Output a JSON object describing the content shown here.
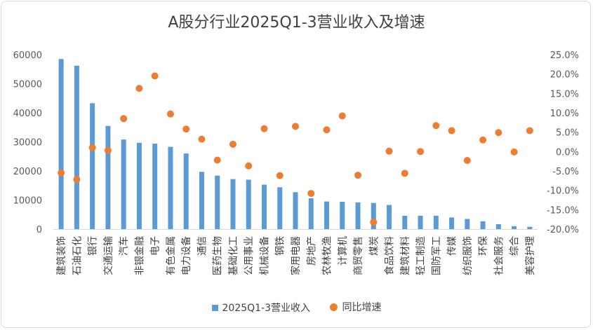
{
  "chart_data": {
    "type": "bar",
    "title": "A股分行业2025Q1-3营业收入及增速",
    "categories": [
      "建筑装饰",
      "石油石化",
      "银行",
      "交通运输",
      "汽车",
      "非银金融",
      "电子",
      "有色金属",
      "电力设备",
      "通信",
      "医药生物",
      "基础化工",
      "公用事业",
      "机械设备",
      "钢铁",
      "家用电器",
      "房地产",
      "农林牧渔",
      "计算机",
      "商贸零售",
      "煤炭",
      "食品饮料",
      "建筑材料",
      "轻工制造",
      "国防军工",
      "传媒",
      "纺织服饰",
      "环保",
      "社会服务",
      "综合",
      "美容护理"
    ],
    "series": [
      {
        "name": "2025Q1-3营业收入",
        "kind": "bar",
        "axis": "left",
        "values": [
          58500,
          56200,
          43300,
          35500,
          30800,
          29700,
          29400,
          28300,
          26000,
          19700,
          18400,
          17200,
          17000,
          15300,
          14400,
          12700,
          10600,
          9500,
          9400,
          9200,
          9000,
          8300,
          4600,
          4600,
          4600,
          4000,
          3500,
          2700,
          1700,
          1000,
          800
        ]
      },
      {
        "name": "同比增速",
        "kind": "scatter",
        "axis": "right",
        "values": [
          -5.5,
          -7.2,
          1.0,
          0.3,
          8.5,
          16.3,
          19.5,
          9.7,
          5.8,
          3.2,
          -2.2,
          1.9,
          -3.7,
          5.9,
          -6.2,
          6.5,
          -10.8,
          5.6,
          9.2,
          -6.1,
          -18.2,
          0.1,
          -5.6,
          0.0,
          6.7,
          5.4,
          -2.3,
          3.0,
          4.9,
          -0.1,
          5.4
        ]
      }
    ],
    "y_left": {
      "min": 0,
      "max": 60000,
      "ticks": [
        0,
        10000,
        20000,
        30000,
        40000,
        50000,
        60000
      ]
    },
    "y_right": {
      "min": -20,
      "max": 25,
      "ticks": [
        "-20.0%",
        "-15.0%",
        "-10.0%",
        "-5.0%",
        "0.0%",
        "5.0%",
        "10.0%",
        "15.0%",
        "20.0%",
        "25.0%"
      ]
    },
    "colors": {
      "bar": "#5b9bd5",
      "dot": "#ed7d31"
    },
    "legend_position": "bottom",
    "grid": false
  }
}
